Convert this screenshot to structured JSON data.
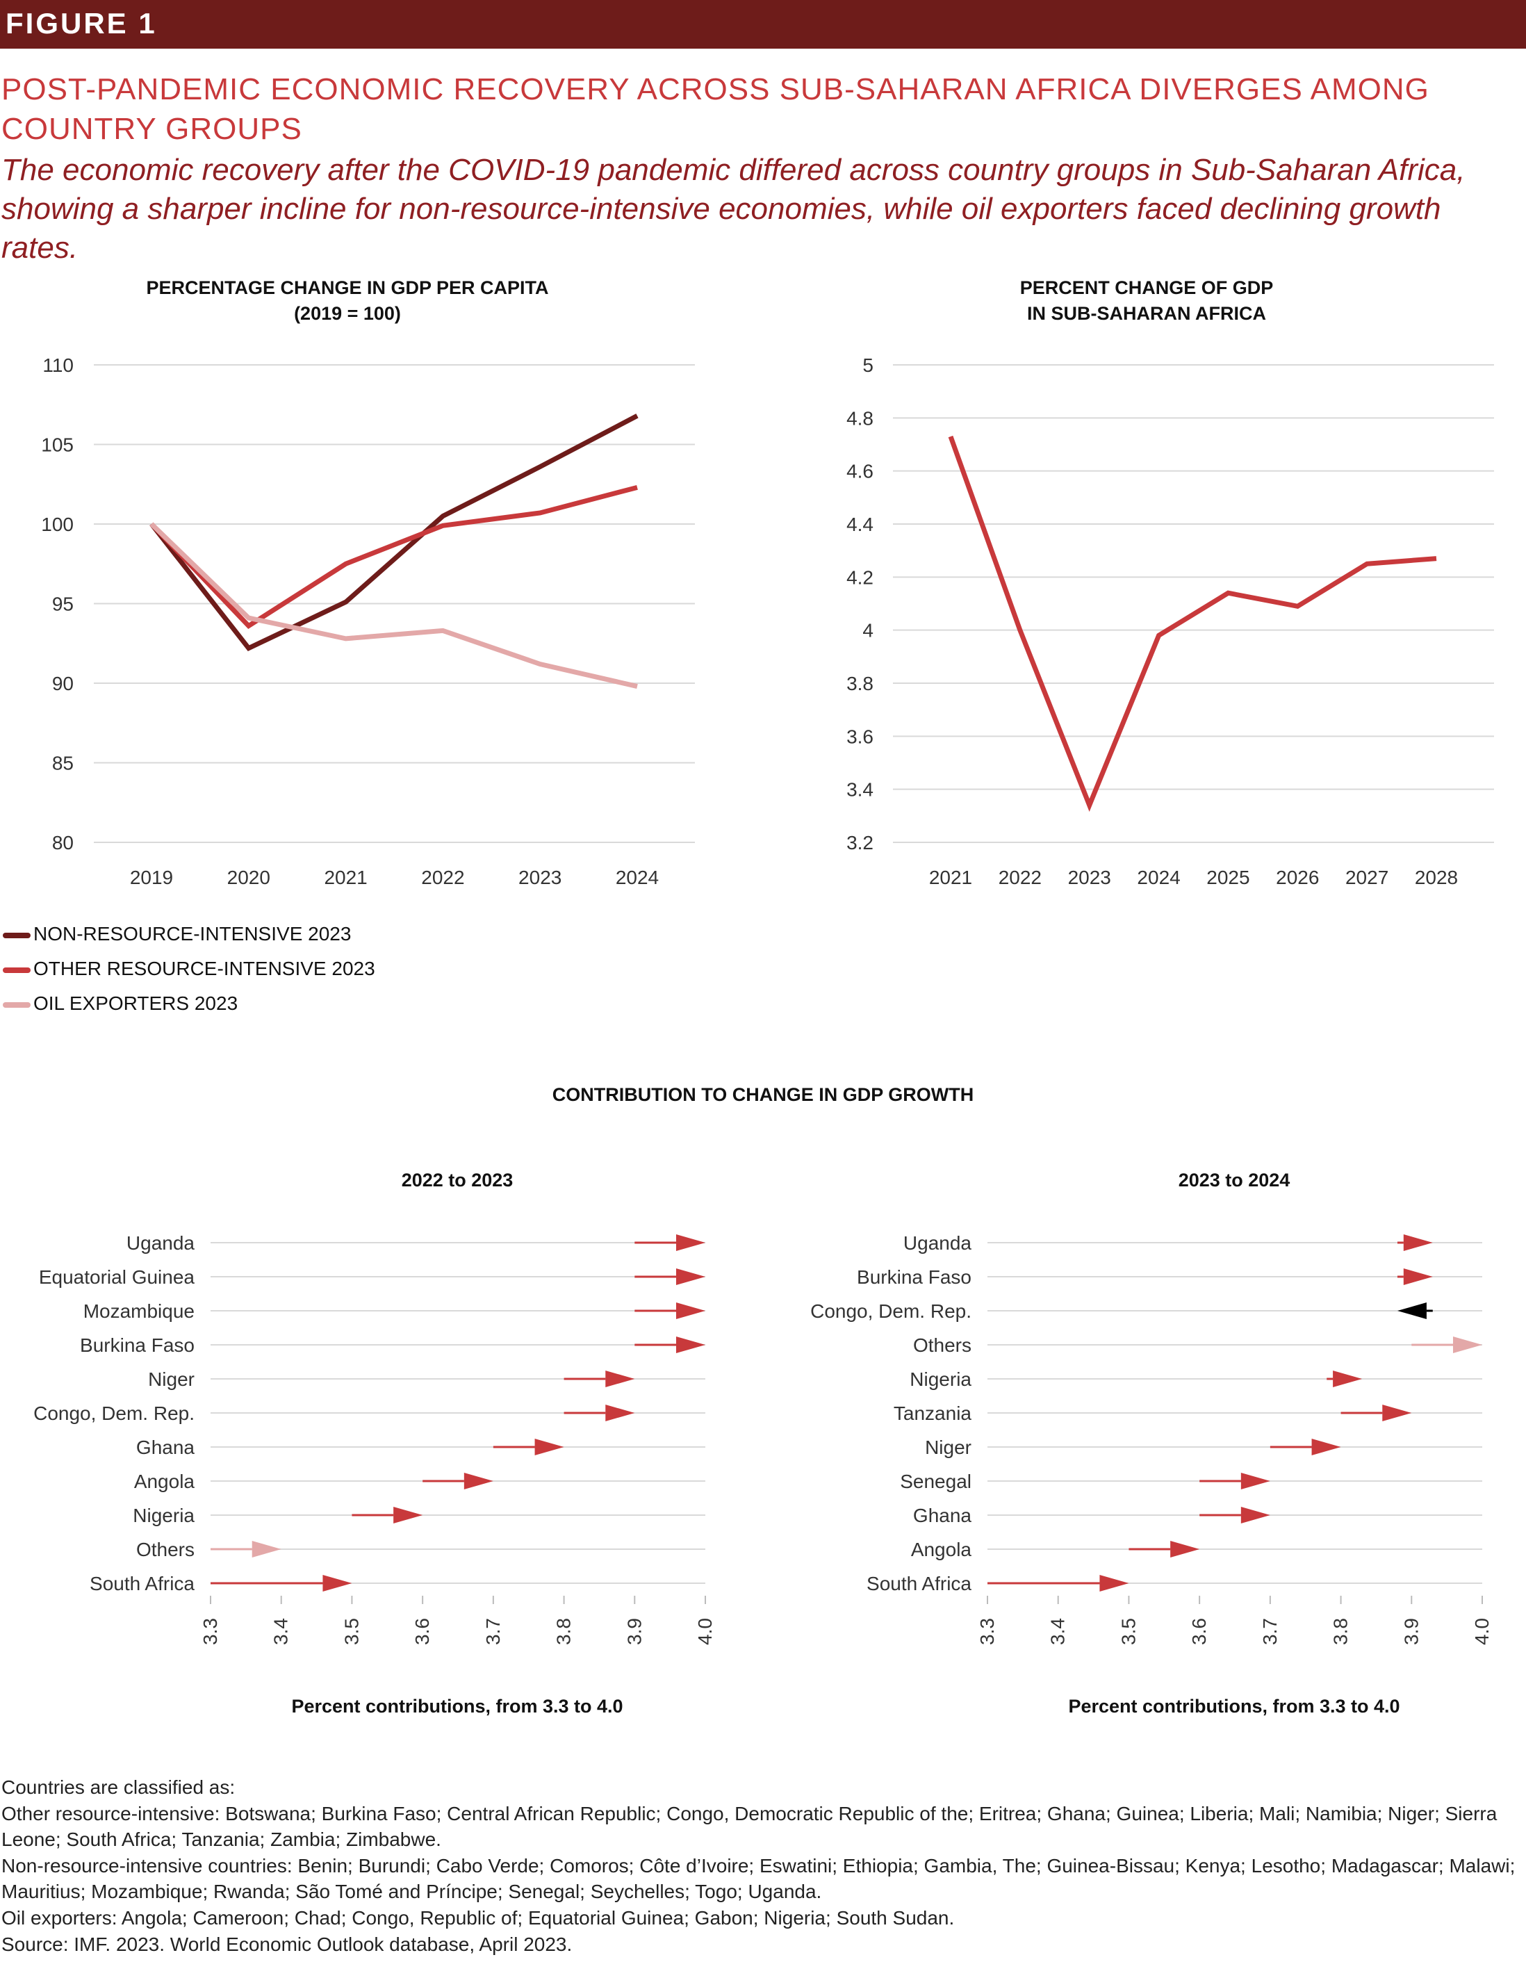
{
  "figure_label": "FIGURE 1",
  "title": "POST-PANDEMIC ECONOMIC RECOVERY ACROSS SUB-SAHARAN AFRICA DIVERGES AMONG COUNTRY GROUPS",
  "subtitle": "The economic recovery after the COVID-19 pandemic differed across country groups in Sub-Saharan Africa, showing a sharper incline for non-resource-intensive economies, while oil exporters faced declining growth rates.",
  "section_title": "CONTRIBUTION  TO CHANGE IN GDP GROWTH",
  "colors": {
    "dark_red": "#6e1c1a",
    "red": "#c8393b",
    "pink": "#e3a8a8",
    "black": "#000000",
    "grid": "#d9d9d9"
  },
  "legend": [
    {
      "label": "NON-RESOURCE-INTENSIVE 2023",
      "color": "#6e1c1a"
    },
    {
      "label": "OTHER RESOURCE-INTENSIVE 2023",
      "color": "#c8393b"
    },
    {
      "label": "OIL EXPORTERS 2023",
      "color": "#e3a8a8"
    }
  ],
  "footnotes": [
    "Countries are classified as:",
    "Other resource-intensive: Botswana; Burkina Faso; Central African Republic; Congo, Democratic Republic of the; Eritrea; Ghana; Guinea; Liberia; Mali; Namibia; Niger; Sierra Leone; South Africa; Tanzania; Zambia; Zimbabwe.",
    "Non-resource-intensive countries: Benin; Burundi; Cabo Verde; Comoros; Côte d’Ivoire; Eswatini; Ethiopia; Gambia, The; Guinea-Bissau; Kenya; Lesotho; Madagascar; Malawi; Mauritius; Mozambique; Rwanda; São Tomé and Príncipe; Senegal; Seychelles; Togo; Uganda.",
    "Oil exporters: Angola; Cameroon; Chad; Congo, Republic of; Equatorial Guinea; Gabon; Nigeria; South Sudan.",
    "Source: IMF. 2023. World Economic Outlook database, April 2023."
  ],
  "chart_data": [
    {
      "type": "line",
      "title": "PERCENTAGE CHANGE  IN GDP PER CAPITA",
      "subtitle": "(2019 = 100)",
      "x": [
        "2019",
        "2020",
        "2021",
        "2022",
        "2023",
        "2024"
      ],
      "ylim": [
        80,
        110
      ],
      "yticks": [
        80,
        85,
        90,
        95,
        100,
        105,
        110
      ],
      "grid": true,
      "legend_position": "bottom-left",
      "series": [
        {
          "name": "NON-RESOURCE-INTENSIVE 2023",
          "color": "#6e1c1a",
          "values": [
            100,
            92.2,
            95.1,
            100.5,
            103.6,
            106.8
          ]
        },
        {
          "name": "OTHER RESOURCE-INTENSIVE 2023",
          "color": "#c8393b",
          "values": [
            100,
            93.6,
            97.5,
            99.9,
            100.7,
            102.3
          ]
        },
        {
          "name": "OIL EXPORTERS 2023",
          "color": "#e3a8a8",
          "values": [
            100,
            94.1,
            92.8,
            93.3,
            91.2,
            89.8
          ]
        }
      ]
    },
    {
      "type": "line",
      "title": "PERCENT CHANGE OF GDP",
      "subtitle": "IN SUB-SAHARAN AFRICA",
      "x": [
        "2021",
        "2022",
        "2023",
        "2024",
        "2025",
        "2026",
        "2027",
        "2028"
      ],
      "ylim": [
        3.2,
        5
      ],
      "yticks": [
        "3.2",
        "3.4",
        "3.6",
        "3.8",
        "4",
        "4.2",
        "4.4",
        "4.6",
        "4.8",
        "5"
      ],
      "grid": true,
      "series": [
        {
          "name": "",
          "color": "#c8393b",
          "values": [
            4.73,
            4.0,
            3.34,
            3.98,
            4.14,
            4.09,
            4.25,
            4.27
          ]
        }
      ]
    },
    {
      "type": "arrow",
      "title": "2022 to 2023",
      "xlabel": "Percent contributions, from 3.3 to 4.0",
      "xlim": [
        3.3,
        4.0
      ],
      "xticks": [
        "3.3",
        "3.4",
        "3.5",
        "3.6",
        "3.7",
        "3.8",
        "3.9",
        "4.0"
      ],
      "rows": [
        {
          "label": "Uganda",
          "from": 3.9,
          "to": 4.0,
          "color": "#c8393b"
        },
        {
          "label": "Equatorial Guinea",
          "from": 3.9,
          "to": 4.0,
          "color": "#c8393b"
        },
        {
          "label": "Mozambique",
          "from": 3.9,
          "to": 4.0,
          "color": "#c8393b"
        },
        {
          "label": "Burkina Faso",
          "from": 3.9,
          "to": 4.0,
          "color": "#c8393b"
        },
        {
          "label": "Niger",
          "from": 3.8,
          "to": 3.9,
          "color": "#c8393b"
        },
        {
          "label": "Congo, Dem. Rep.",
          "from": 3.8,
          "to": 3.9,
          "color": "#c8393b"
        },
        {
          "label": "Ghana",
          "from": 3.7,
          "to": 3.8,
          "color": "#c8393b"
        },
        {
          "label": "Angola",
          "from": 3.6,
          "to": 3.7,
          "color": "#c8393b"
        },
        {
          "label": "Nigeria",
          "from": 3.5,
          "to": 3.6,
          "color": "#c8393b"
        },
        {
          "label": "Others",
          "from": 3.3,
          "to": 3.4,
          "color": "#e3a8a8"
        },
        {
          "label": "South Africa",
          "from": 3.3,
          "to": 3.5,
          "color": "#c8393b"
        }
      ]
    },
    {
      "type": "arrow",
      "title": "2023 to 2024",
      "xlabel": "Percent contributions, from 3.3 to 4.0",
      "xlim": [
        3.3,
        4.0
      ],
      "xticks": [
        "3.3",
        "3.4",
        "3.5",
        "3.6",
        "3.7",
        "3.8",
        "3.9",
        "4.0"
      ],
      "rows": [
        {
          "label": "Uganda",
          "from": 3.88,
          "to": 3.93,
          "color": "#c8393b"
        },
        {
          "label": "Burkina Faso",
          "from": 3.88,
          "to": 3.93,
          "color": "#c8393b"
        },
        {
          "label": "Congo, Dem. Rep.",
          "from": 3.93,
          "to": 3.88,
          "color": "#000000"
        },
        {
          "label": "Others",
          "from": 3.9,
          "to": 4.0,
          "color": "#e3a8a8"
        },
        {
          "label": "Nigeria",
          "from": 3.78,
          "to": 3.83,
          "color": "#c8393b"
        },
        {
          "label": "Tanzania",
          "from": 3.8,
          "to": 3.9,
          "color": "#c8393b"
        },
        {
          "label": "Niger",
          "from": 3.7,
          "to": 3.8,
          "color": "#c8393b"
        },
        {
          "label": "Senegal",
          "from": 3.6,
          "to": 3.7,
          "color": "#c8393b"
        },
        {
          "label": "Ghana",
          "from": 3.6,
          "to": 3.7,
          "color": "#c8393b"
        },
        {
          "label": "Angola",
          "from": 3.5,
          "to": 3.6,
          "color": "#c8393b"
        },
        {
          "label": "South Africa",
          "from": 3.3,
          "to": 3.5,
          "color": "#c8393b"
        }
      ]
    }
  ]
}
